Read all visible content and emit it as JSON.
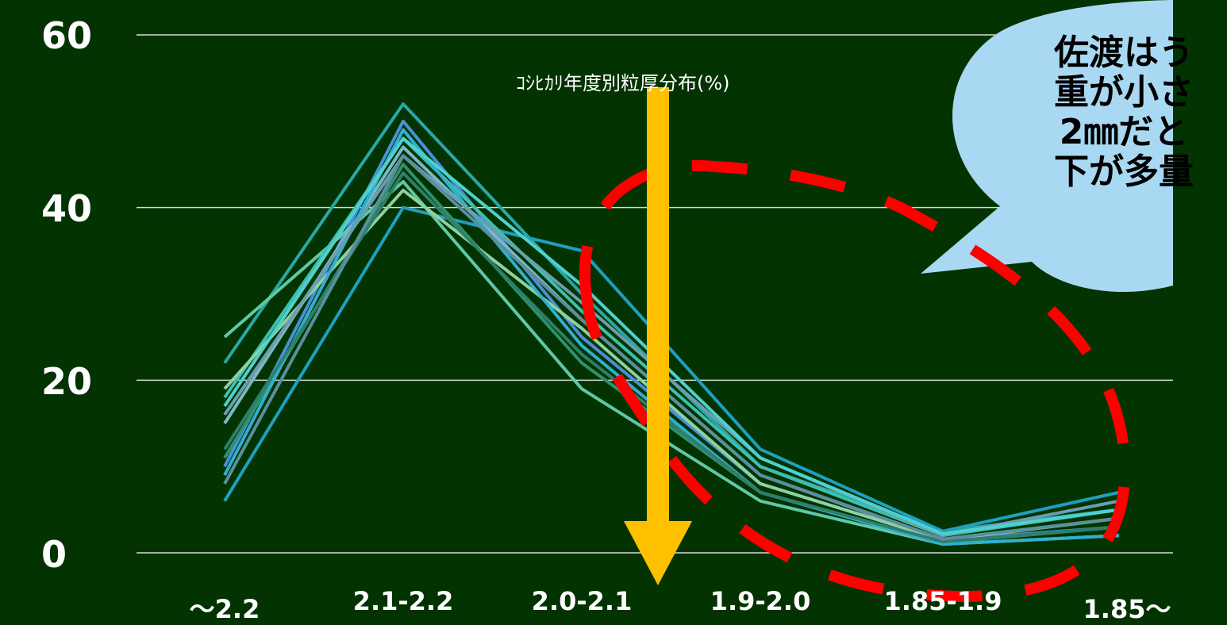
{
  "chart_data": {
    "type": "line",
    "title": "ｺｼﾋｶﾘ年度別粒厚分布(%)",
    "categories": [
      "～2.2",
      "2.1-2.2",
      "2.0-2.1",
      "1.9-2.0",
      "1.85-1.9",
      "1.85～"
    ],
    "ylim": [
      0,
      60
    ],
    "yticks": [
      "60",
      "40",
      "20",
      "0"
    ],
    "grid": true,
    "legend": "none",
    "series": [
      {
        "color": "#2aa7a7",
        "values": [
          22,
          52,
          30,
          10,
          2.5,
          5
        ]
      },
      {
        "color": "#4a8fd8",
        "values": [
          10,
          50,
          25,
          8,
          1.5,
          3
        ]
      },
      {
        "color": "#1f9fc0",
        "values": [
          6,
          40,
          35,
          12,
          2.5,
          7
        ]
      },
      {
        "color": "#5fc8a8",
        "values": [
          25,
          43,
          19,
          6,
          1.0,
          2
        ]
      },
      {
        "color": "#7ab8c8",
        "values": [
          15,
          47,
          27,
          9,
          1.5,
          4
        ]
      },
      {
        "color": "#3fbfae",
        "values": [
          18,
          48,
          28,
          10,
          2.0,
          5
        ]
      },
      {
        "color": "#2f8f6f",
        "values": [
          11,
          45,
          22,
          7,
          1.2,
          3
        ]
      },
      {
        "color": "#8fd0a0",
        "values": [
          19,
          42,
          26,
          8,
          1.5,
          4
        ]
      },
      {
        "color": "#30b0d0",
        "values": [
          9,
          49,
          24,
          7,
          1.0,
          2
        ]
      },
      {
        "color": "#6a9fb0",
        "values": [
          16,
          46,
          29,
          11,
          2.0,
          6
        ]
      },
      {
        "color": "#2e7f6a",
        "values": [
          12,
          44,
          23,
          7,
          1.3,
          3
        ]
      },
      {
        "color": "#4fd0d0",
        "values": [
          17,
          48,
          31,
          11,
          2.2,
          5
        ]
      },
      {
        "color": "#5a8fa0",
        "values": [
          8,
          46,
          27,
          9,
          1.6,
          4
        ]
      }
    ],
    "annotations": {
      "arrow_color": "#ffc000",
      "ellipse_color": "#ff0000",
      "callout_color": "#a9d9f2",
      "callout_lines": [
        "佐渡はう",
        "重が小さ",
        "2㎜だと",
        "下が多量"
      ]
    }
  }
}
